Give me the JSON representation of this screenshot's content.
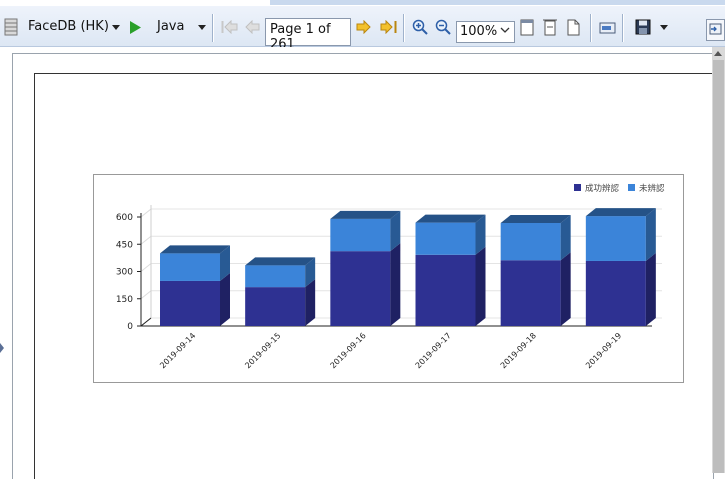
{
  "toolbar": {
    "db_label": "FaceDB (HK)",
    "lang_label": "Java",
    "page_label": "Page 1 of 261",
    "zoom_value": "100%"
  },
  "icons": {
    "db": "database-icon",
    "run": "play-icon",
    "first": "first-page-icon",
    "prev": "previous-page-icon",
    "next": "next-page-icon",
    "last": "last-page-icon",
    "zoom_in": "zoom-in-icon",
    "zoom_out": "zoom-out-icon",
    "save": "save-icon"
  },
  "colors": {
    "series_success": "#2e3192",
    "series_fail": "#3b84d9",
    "run_green": "#2aa02a",
    "nav_arrow": "#e8a81c"
  },
  "chart_data": {
    "type": "bar",
    "stacked": true,
    "three_d": true,
    "categories": [
      "2019-09-14",
      "2019-09-15",
      "2019-09-16",
      "2019-09-17",
      "2019-09-18",
      "2019-09-19"
    ],
    "series": [
      {
        "name": "成功辨認",
        "values": [
          248,
          214,
          412,
          392,
          362,
          358
        ]
      },
      {
        "name": "未辨認",
        "values": [
          152,
          120,
          178,
          177,
          205,
          247
        ]
      }
    ],
    "yticks": [
      0,
      150,
      300,
      450,
      600
    ],
    "ylim": [
      0,
      600
    ],
    "grid": true,
    "legend_position": "top-right"
  }
}
